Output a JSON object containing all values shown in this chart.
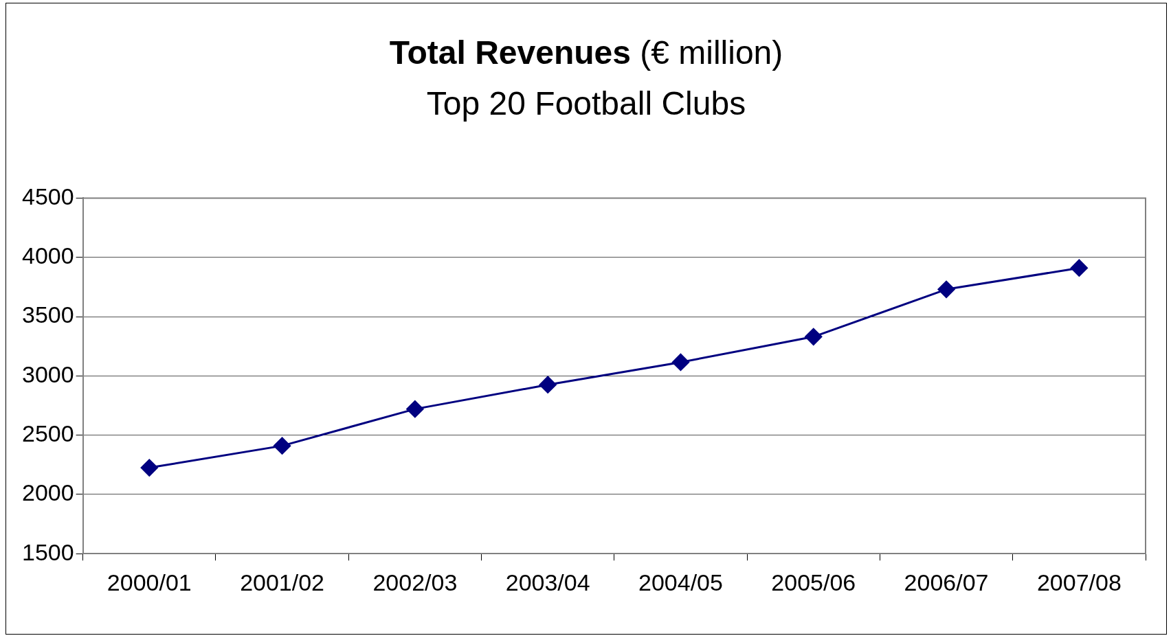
{
  "chart_data": {
    "type": "line",
    "title": "Total Revenues (€ million)",
    "subtitle": "Top 20 Football Clubs",
    "categories": [
      "2000/01",
      "2001/02",
      "2002/03",
      "2003/04",
      "2004/05",
      "2005/06",
      "2006/07",
      "2007/08"
    ],
    "series": [
      {
        "color": "#000080",
        "values": [
          2225,
          2410,
          2720,
          2925,
          3115,
          3330,
          3730,
          3910
        ]
      }
    ],
    "ylim": [
      1500,
      4500
    ],
    "yticks": [
      1500,
      2000,
      2500,
      3000,
      3500,
      4000,
      4500
    ],
    "grid": "y",
    "legend": false,
    "marker": "diamond",
    "line_style": "solid"
  }
}
